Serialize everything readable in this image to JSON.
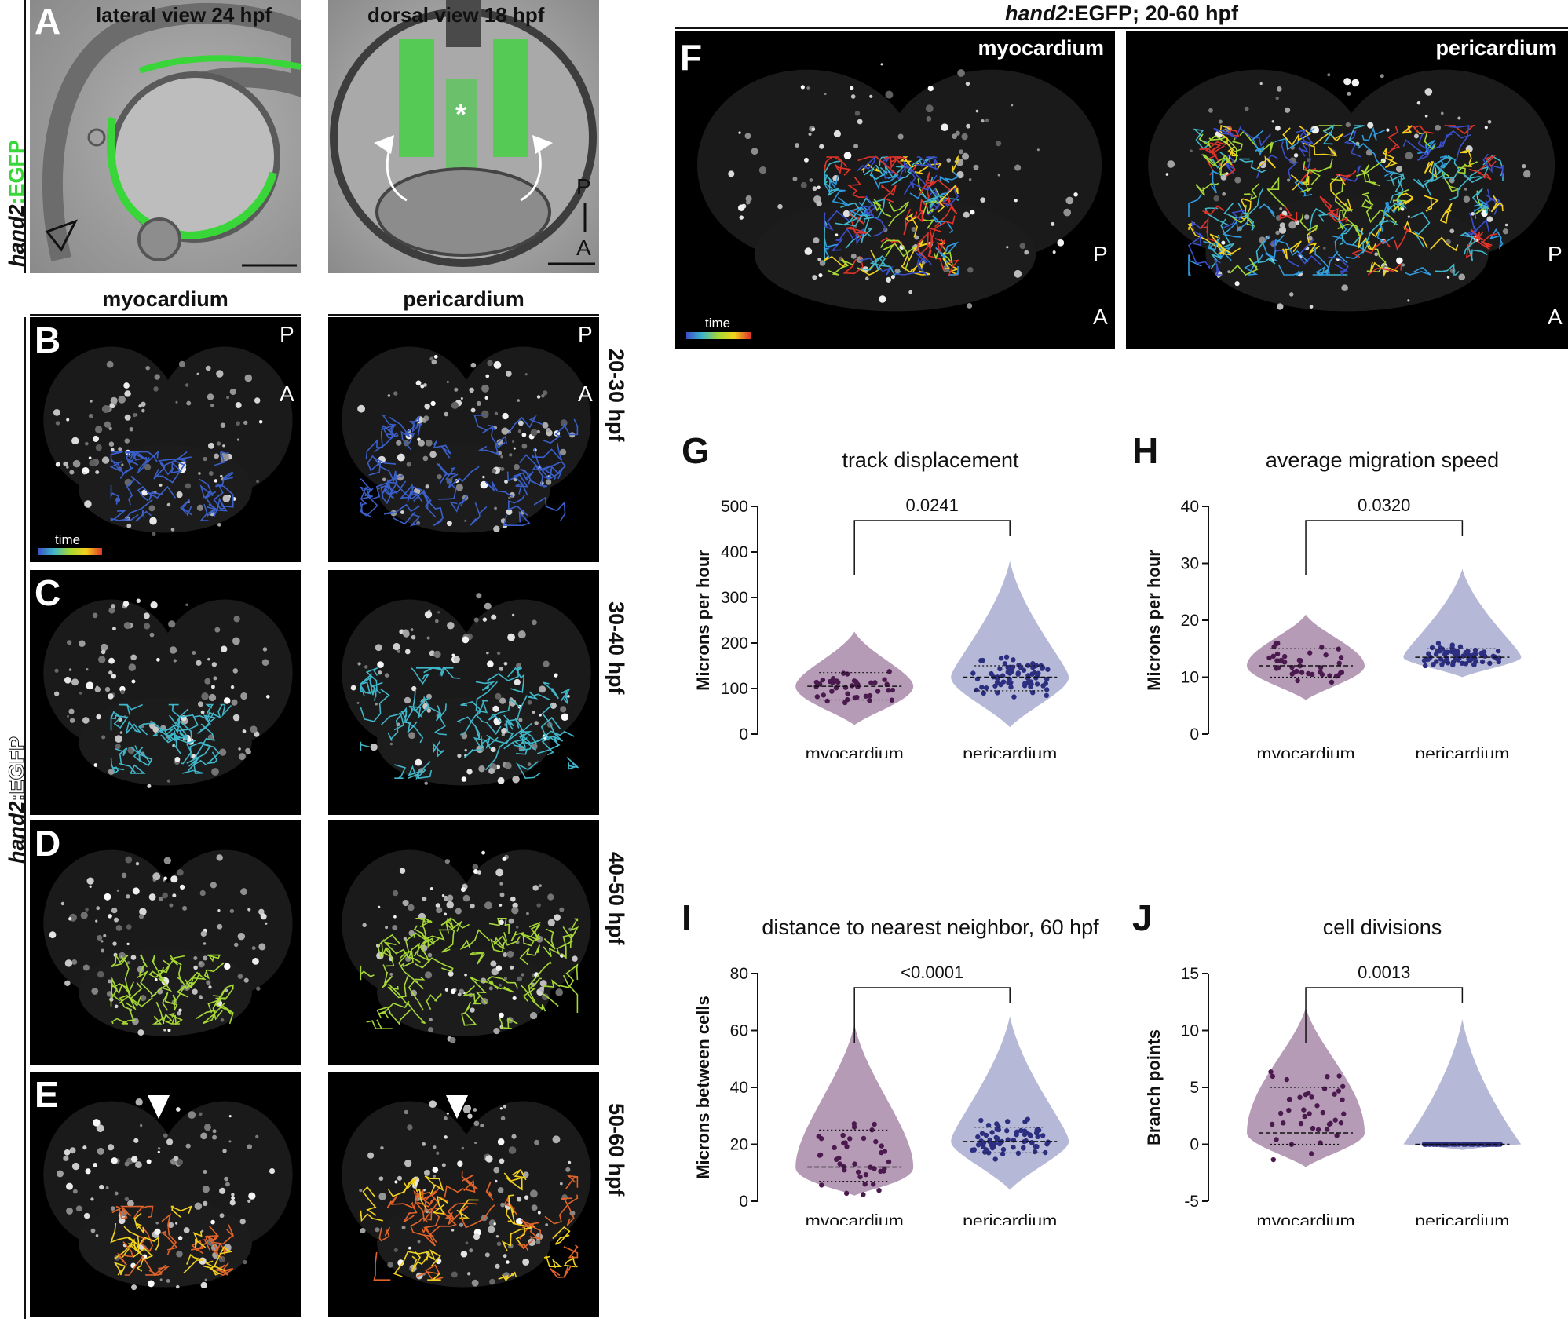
{
  "panels": {
    "A": {
      "letter": "A",
      "gene_label_italic": "hand2",
      "gene_label_rest": ":EGFP",
      "left_title": "lateral view 24 hpf",
      "right_title": "dorsal view 18 hpf",
      "axis_P": "P",
      "axis_A": "A",
      "asterisk": "*"
    },
    "BtoE": {
      "col_left": "myocardium",
      "col_right": "pericardium",
      "side_label_italic": "hand2",
      "side_label_rest": ":EGFP",
      "axis_P": "P",
      "axis_A": "A",
      "time_label": "time",
      "rows": [
        {
          "letter": "B",
          "time": "20-30 hpf",
          "color": "#3a5fc9"
        },
        {
          "letter": "C",
          "time": "30-40 hpf",
          "color": "#3fb6c9"
        },
        {
          "letter": "D",
          "time": "40-50 hpf",
          "color": "#a6d835"
        },
        {
          "letter": "E",
          "time": "50-60 hpf",
          "color": "#e0642a"
        }
      ]
    },
    "F": {
      "letter": "F",
      "header_italic": "hand2",
      "header_rest": ":EGFP; 20-60 hpf",
      "left_label": "myocardium",
      "right_label": "pericardium",
      "axis_P": "P",
      "axis_A": "A",
      "time_label": "time"
    }
  },
  "colors": {
    "egfp_green": "#39d639",
    "myocardium_fill": "#a98aaa",
    "myocardium_dot": "#4a1a4e",
    "pericardium_fill": "#a9acd0",
    "pericardium_dot": "#2c2f80"
  },
  "chart_data": [
    {
      "letter": "G",
      "type": "violin",
      "title": "track displacement",
      "ylabel": "Microns per hour",
      "categories": [
        "myocardium",
        "pericardium"
      ],
      "ylim": [
        0,
        500
      ],
      "yticks": [
        0,
        100,
        200,
        300,
        400,
        500
      ],
      "pvalue": "0.0241",
      "series": [
        {
          "category": "myocardium",
          "median": 105,
          "q1": 75,
          "q3": 135,
          "min": 20,
          "max": 225
        },
        {
          "category": "pericardium",
          "median": 125,
          "q1": 95,
          "q3": 150,
          "min": 15,
          "max": 380
        }
      ]
    },
    {
      "letter": "H",
      "type": "violin",
      "title": "average migration speed",
      "ylabel": "Microns per hour",
      "categories": [
        "myocardium",
        "pericardium"
      ],
      "ylim": [
        0,
        40
      ],
      "yticks": [
        0,
        10,
        20,
        30,
        40
      ],
      "pvalue": "0.0320",
      "series": [
        {
          "category": "myocardium",
          "median": 12,
          "q1": 10,
          "q3": 15,
          "min": 6,
          "max": 21
        },
        {
          "category": "pericardium",
          "median": 13.5,
          "q1": 12.5,
          "q3": 15,
          "min": 10,
          "max": 29
        }
      ]
    },
    {
      "letter": "I",
      "type": "violin",
      "title": "distance to nearest neighbor, 60 hpf",
      "ylabel": "Microns between cells",
      "categories": [
        "myocardium",
        "pericardium"
      ],
      "ylim": [
        0,
        80
      ],
      "yticks": [
        0,
        20,
        40,
        60,
        80
      ],
      "pvalue": "<0.0001",
      "series": [
        {
          "category": "myocardium",
          "median": 12,
          "q1": 7,
          "q3": 25,
          "min": 2,
          "max": 62
        },
        {
          "category": "pericardium",
          "median": 21,
          "q1": 17,
          "q3": 26,
          "min": 4,
          "max": 65
        }
      ]
    },
    {
      "letter": "J",
      "type": "violin",
      "title": "cell divisions",
      "ylabel": "Branch points",
      "categories": [
        "myocardium",
        "pericardium"
      ],
      "ylim": [
        -5,
        15
      ],
      "yticks": [
        -5,
        0,
        5,
        10,
        15
      ],
      "pvalue": "0.0013",
      "series": [
        {
          "category": "myocardium",
          "median": 1,
          "q1": 0,
          "q3": 5,
          "min": -2,
          "max": 12
        },
        {
          "category": "pericardium",
          "median": 0,
          "q1": 0,
          "q3": 0,
          "min": -0.5,
          "max": 11
        }
      ]
    }
  ]
}
